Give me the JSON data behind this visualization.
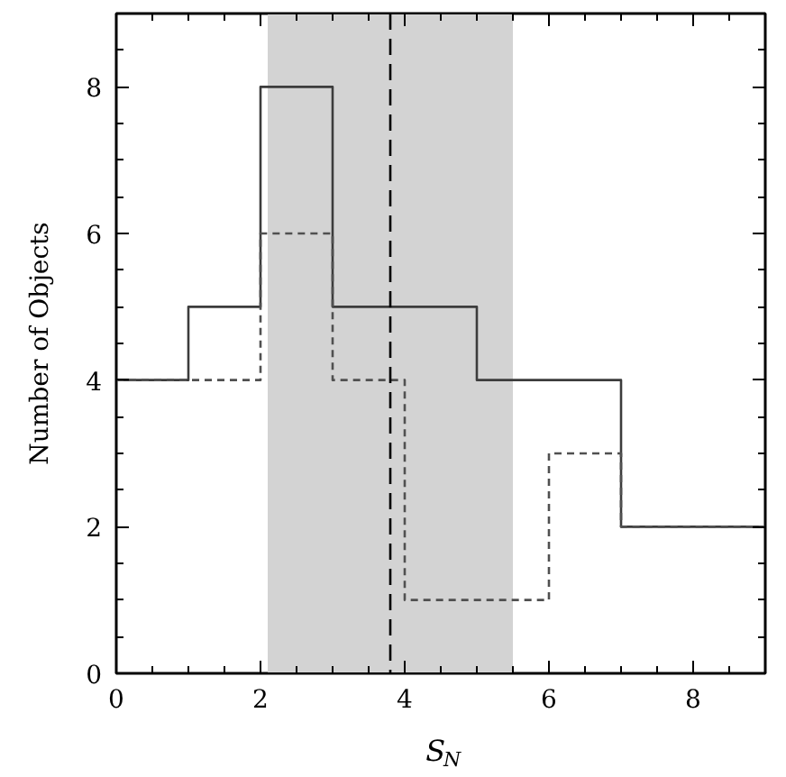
{
  "chart_data": {
    "type": "histogram",
    "xlabel": "S$_{N}$",
    "ylabel": "Number of Objects",
    "bins": [
      0,
      1,
      2,
      3,
      4,
      5,
      6,
      7,
      8,
      9
    ],
    "series": [
      {
        "color": "#3c3c3c",
        "line_style": "solid",
        "values": [
          4,
          5,
          8,
          5,
          5,
          4,
          4,
          2,
          2
        ]
      },
      {
        "color": "#505050",
        "line_style": "dashed",
        "values": [
          4,
          4,
          6,
          4,
          1,
          1,
          3,
          2,
          2
        ]
      }
    ],
    "xlim": [
      0,
      9
    ],
    "ylim": [
      0,
      9
    ],
    "xticks": [
      0,
      2,
      4,
      6,
      8
    ],
    "yticks": [
      0,
      2,
      4,
      6,
      8
    ],
    "grid": false,
    "ref_lines": [
      {
        "axis": "x",
        "value": 3.8,
        "color": "#000000",
        "line_style": "dashed"
      }
    ],
    "bands": [
      {
        "axis": "x",
        "from": 2.1,
        "to": 5.5,
        "color": "#d3d3d3"
      }
    ]
  }
}
